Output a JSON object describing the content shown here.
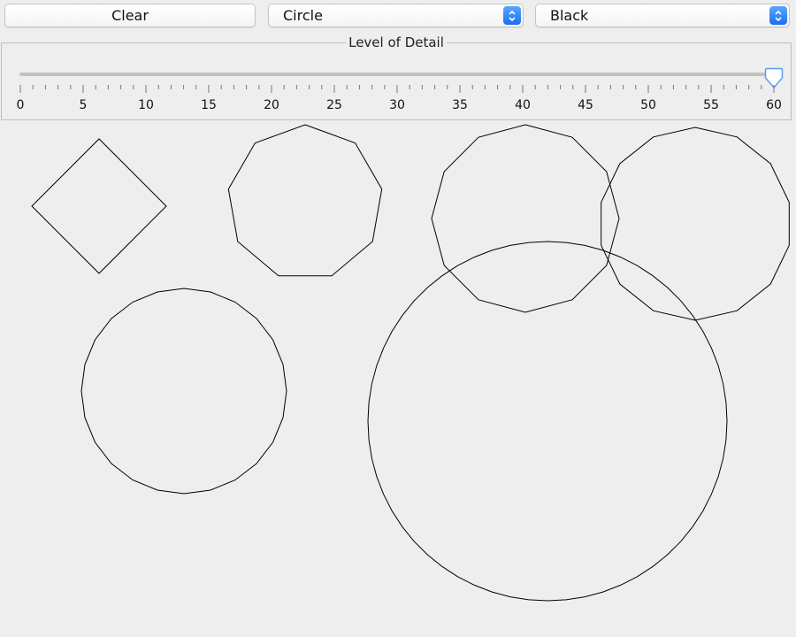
{
  "toolbar": {
    "clear_label": "Clear",
    "shape_selected": "Circle",
    "color_selected": "Black"
  },
  "detail_slider": {
    "title": "Level of Detail",
    "min": 0,
    "max": 60,
    "value": 60,
    "major_ticks": [
      "0",
      "5",
      "10",
      "15",
      "20",
      "25",
      "30",
      "35",
      "40",
      "45",
      "50",
      "55",
      "60"
    ]
  },
  "canvas": {
    "stroke_color": "#000000",
    "background": "#eeeeee"
  },
  "colors": {
    "accent": "#1a6ef0",
    "track": "#c2c2c2"
  }
}
